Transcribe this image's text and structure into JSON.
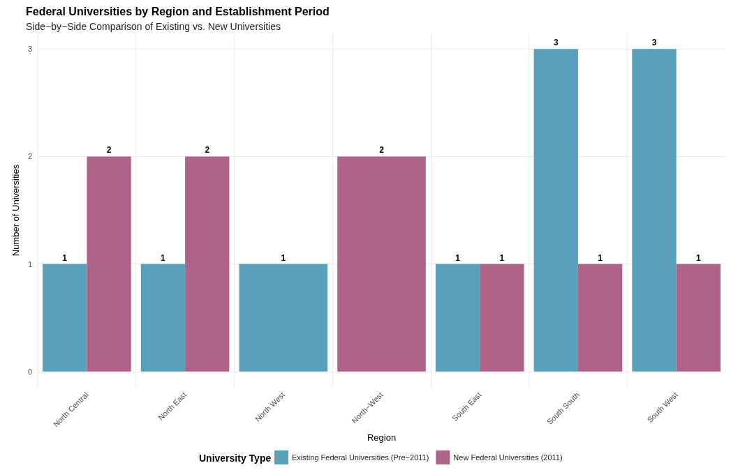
{
  "chart_data": {
    "type": "bar",
    "title": "Federal Universities by Region and Establishment Period",
    "subtitle": "Side−by−Side Comparison of Existing vs. New Universities",
    "xlabel": "Region",
    "ylabel": "Number of Universities",
    "legend_title": "University Type",
    "categories": [
      "North Central",
      "North East",
      "North West",
      "North−West",
      "South East",
      "South South",
      "South West"
    ],
    "series": [
      {
        "name": "Existing Federal Universities (Pre−2011)",
        "color": "#5aa0bb",
        "values": [
          1,
          1,
          1,
          null,
          1,
          3,
          3
        ]
      },
      {
        "name": "New Federal Universities (2011)",
        "color": "#b06389",
        "values": [
          2,
          2,
          null,
          2,
          1,
          1,
          1
        ]
      }
    ],
    "ylim": [
      -0.15,
      3.15
    ],
    "yticks": [
      0,
      1,
      2,
      3
    ],
    "grid": true,
    "legend": "bottom",
    "data_labels": true
  }
}
